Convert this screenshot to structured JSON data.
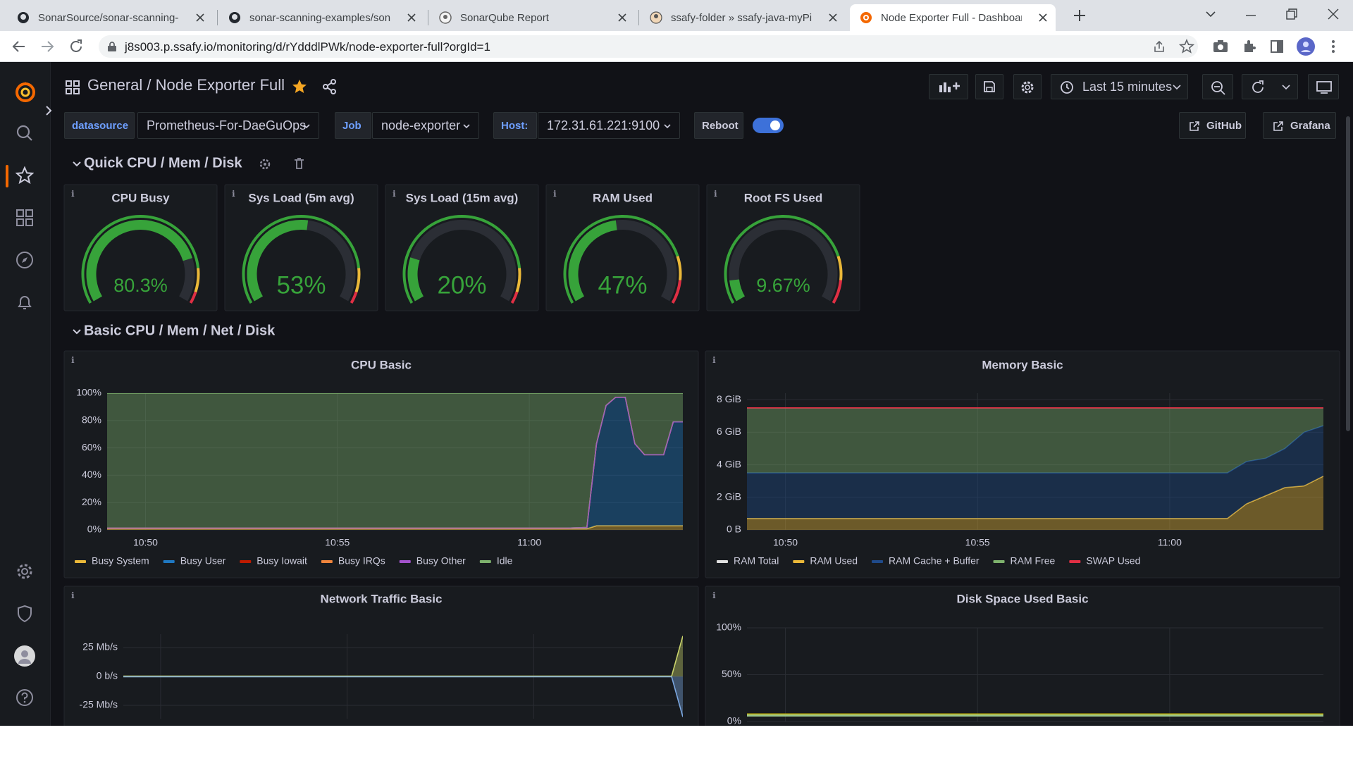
{
  "browser": {
    "tabs": [
      "SonarSource/sonar-scanning-ex",
      "sonar-scanning-examples/sonar",
      "SonarQube Report",
      "ssafy-folder » ssafy-java-myPipe",
      "Node Exporter Full - Dashboard"
    ],
    "url": "j8s003.p.ssafy.io/monitoring/d/rYdddlPWk/node-exporter-full?orgId=1"
  },
  "dashboard": {
    "folder": "General",
    "title": "/ Node Exporter Full",
    "time_range": "Last 15 minutes",
    "variables": [
      {
        "label": "datasource",
        "value": "Prometheus-For-DaeGuOps"
      },
      {
        "label": "Job",
        "value": "node-exporter"
      },
      {
        "label": "Host:",
        "value": "172.31.61.221:9100"
      }
    ],
    "toggle_label": "Reboot",
    "links": [
      "GitHub",
      "Grafana"
    ]
  },
  "rows": [
    {
      "title": "Quick CPU / Mem / Disk"
    },
    {
      "title": "Basic CPU / Mem / Net / Disk"
    }
  ],
  "chart_data": [
    {
      "type": "gauge",
      "title": "CPU Busy",
      "value": 80.3,
      "value_label": "80.3%",
      "range": [
        0,
        100
      ],
      "color": "#37a33a",
      "base_color": "#37a33a",
      "thresholds": [
        {
          "value": 85,
          "color": "#eab839"
        },
        {
          "value": 95,
          "color": "#e02f44"
        }
      ]
    },
    {
      "type": "gauge",
      "title": "Sys Load (5m avg)",
      "value": 53,
      "value_label": "53%",
      "range": [
        0,
        100
      ],
      "color": "#37a33a",
      "base_color": "#37a33a",
      "thresholds": [
        {
          "value": 85,
          "color": "#eab839"
        },
        {
          "value": 95,
          "color": "#e02f44"
        }
      ]
    },
    {
      "type": "gauge",
      "title": "Sys Load (15m avg)",
      "value": 20,
      "value_label": "20%",
      "range": [
        0,
        100
      ],
      "color": "#37a33a",
      "base_color": "#37a33a",
      "thresholds": [
        {
          "value": 85,
          "color": "#eab839"
        },
        {
          "value": 95,
          "color": "#e02f44"
        }
      ]
    },
    {
      "type": "gauge",
      "title": "RAM Used",
      "value": 47,
      "value_label": "47%",
      "range": [
        0,
        100
      ],
      "color": "#37a33a",
      "base_color": "#37a33a",
      "thresholds": [
        {
          "value": 80,
          "color": "#eab839"
        },
        {
          "value": 90,
          "color": "#e02f44"
        }
      ]
    },
    {
      "type": "gauge",
      "title": "Root FS Used",
      "value": 9.67,
      "value_label": "9.67%",
      "range": [
        0,
        100
      ],
      "color": "#37a33a",
      "base_color": "#37a33a",
      "thresholds": [
        {
          "value": 80,
          "color": "#eab839"
        },
        {
          "value": 90,
          "color": "#e02f44"
        }
      ]
    },
    {
      "type": "area",
      "title": "CPU Basic",
      "stacked": true,
      "x": [
        49,
        49.5,
        50,
        50.5,
        51,
        51.5,
        52,
        52.5,
        53,
        53.5,
        54,
        54.5,
        55,
        55.5,
        56,
        56.5,
        57,
        57.5,
        58,
        58.5,
        59,
        59.5,
        60,
        60.5,
        61,
        61.5,
        61.75,
        62,
        62.25,
        62.5,
        62.75,
        63,
        63.25,
        63.5,
        63.75,
        64
      ],
      "xlim": [
        49,
        64
      ],
      "xticks": [
        {
          "value": 50,
          "label": "10:50"
        },
        {
          "value": 55,
          "label": "10:55"
        },
        {
          "value": 60,
          "label": "11:00"
        }
      ],
      "ylim": [
        0,
        100
      ],
      "yticks": [
        {
          "value": 0,
          "label": "0%"
        },
        {
          "value": 20,
          "label": "20%"
        },
        {
          "value": 40,
          "label": "40%"
        },
        {
          "value": 60,
          "label": "60%"
        },
        {
          "value": 80,
          "label": "80%"
        },
        {
          "value": 100,
          "label": "100%"
        }
      ],
      "series": [
        {
          "name": "Busy System",
          "color": "#eab839",
          "values": [
            0.8,
            0.8,
            0.8,
            0.8,
            0.8,
            0.8,
            0.8,
            0.8,
            0.8,
            0.8,
            0.8,
            0.8,
            0.8,
            0.8,
            0.8,
            0.8,
            0.8,
            0.8,
            0.8,
            0.8,
            0.8,
            0.8,
            0.8,
            0.8,
            0.8,
            0.8,
            3,
            3,
            3,
            3,
            3,
            3,
            3,
            3,
            3,
            3
          ]
        },
        {
          "name": "Busy User",
          "color": "#1f78c1",
          "values": [
            0.5,
            0.5,
            0.5,
            0.5,
            0.5,
            0.5,
            0.5,
            0.5,
            0.5,
            0.5,
            0.5,
            0.5,
            0.5,
            0.5,
            0.5,
            0.5,
            0.5,
            0.5,
            0.5,
            0.5,
            0.5,
            0.5,
            0.5,
            0.5,
            0.5,
            1,
            60,
            88,
            94,
            94,
            60,
            52,
            52,
            52,
            76,
            76
          ]
        },
        {
          "name": "Busy Iowait",
          "color": "#bf1b00",
          "values": [
            0,
            0,
            0,
            0,
            0,
            0,
            0,
            0,
            0,
            0,
            0,
            0,
            0,
            0,
            0,
            0,
            0,
            0,
            0,
            0,
            0,
            0,
            0,
            0,
            0,
            0,
            0,
            0,
            0,
            0,
            0,
            0,
            0,
            0,
            0,
            0
          ]
        },
        {
          "name": "Busy IRQs",
          "color": "#ef843c",
          "values": [
            0,
            0,
            0,
            0,
            0,
            0,
            0,
            0,
            0,
            0,
            0,
            0,
            0,
            0,
            0,
            0,
            0,
            0,
            0,
            0,
            0,
            0,
            0,
            0,
            0,
            0,
            0,
            0,
            0,
            0,
            0,
            0,
            0,
            0,
            0,
            0
          ]
        },
        {
          "name": "Busy Other",
          "color": "#a352cc",
          "values": [
            0,
            0,
            0,
            0,
            0,
            0,
            0,
            0,
            0,
            0,
            0,
            0,
            0,
            0,
            0,
            0,
            0,
            0,
            0,
            0,
            0,
            0,
            0,
            0,
            0,
            0,
            0,
            0,
            0,
            0,
            0,
            0,
            0,
            0,
            0,
            0
          ]
        },
        {
          "name": "Idle",
          "color": "#7eb26d",
          "values": [
            98.7,
            98.7,
            98.7,
            98.7,
            98.7,
            98.7,
            98.7,
            98.7,
            98.7,
            98.7,
            98.7,
            98.7,
            98.7,
            98.7,
            98.7,
            98.7,
            98.7,
            98.7,
            98.7,
            98.7,
            98.7,
            98.7,
            98.7,
            98.7,
            98.7,
            98.2,
            37,
            9,
            3,
            3,
            37,
            45,
            45,
            45,
            21,
            21
          ]
        }
      ]
    },
    {
      "type": "area",
      "title": "Memory Basic",
      "stacked": true,
      "x": [
        49,
        49.5,
        50,
        50.5,
        51,
        51.5,
        52,
        52.5,
        53,
        53.5,
        54,
        54.5,
        55,
        55.5,
        56,
        56.5,
        57,
        57.5,
        58,
        58.5,
        59,
        59.5,
        60,
        60.5,
        61,
        61.5,
        62,
        62.5,
        63,
        63.5,
        64
      ],
      "xlim": [
        49,
        64
      ],
      "xticks": [
        {
          "value": 50,
          "label": "10:50"
        },
        {
          "value": 55,
          "label": "10:55"
        },
        {
          "value": 60,
          "label": "11:00"
        }
      ],
      "ylim": [
        0,
        8.4
      ],
      "yticks": [
        {
          "value": 0,
          "label": "0 B"
        },
        {
          "value": 2,
          "label": "2 GiB"
        },
        {
          "value": 4,
          "label": "4 GiB"
        },
        {
          "value": 6,
          "label": "6 GiB"
        },
        {
          "value": 8,
          "label": "8 GiB"
        }
      ],
      "series": [
        {
          "name": "RAM Total",
          "color": "#e0e0e0",
          "stack": false,
          "values": [
            7.5,
            7.5,
            7.5,
            7.5,
            7.5,
            7.5,
            7.5,
            7.5,
            7.5,
            7.5,
            7.5,
            7.5,
            7.5,
            7.5,
            7.5,
            7.5,
            7.5,
            7.5,
            7.5,
            7.5,
            7.5,
            7.5,
            7.5,
            7.5,
            7.5,
            7.5,
            7.5,
            7.5,
            7.5,
            7.5,
            7.5
          ]
        },
        {
          "name": "RAM Used",
          "color": "#eab839",
          "values": [
            0.7,
            0.7,
            0.7,
            0.7,
            0.7,
            0.7,
            0.7,
            0.7,
            0.7,
            0.7,
            0.7,
            0.7,
            0.7,
            0.7,
            0.7,
            0.7,
            0.7,
            0.7,
            0.7,
            0.7,
            0.7,
            0.7,
            0.7,
            0.7,
            0.7,
            0.7,
            1.6,
            2.1,
            2.6,
            2.7,
            3.3
          ]
        },
        {
          "name": "RAM Cache + Buffer",
          "color": "#1f4a8a",
          "values": [
            2.8,
            2.8,
            2.8,
            2.8,
            2.8,
            2.8,
            2.8,
            2.8,
            2.8,
            2.8,
            2.8,
            2.8,
            2.8,
            2.8,
            2.8,
            2.8,
            2.8,
            2.8,
            2.8,
            2.8,
            2.8,
            2.8,
            2.8,
            2.8,
            2.8,
            2.8,
            2.6,
            2.3,
            2.4,
            3.3,
            3.1
          ]
        },
        {
          "name": "RAM Free",
          "color": "#7eb26d",
          "values": [
            4.0,
            4.0,
            4.0,
            4.0,
            4.0,
            4.0,
            4.0,
            4.0,
            4.0,
            4.0,
            4.0,
            4.0,
            4.0,
            4.0,
            4.0,
            4.0,
            4.0,
            4.0,
            4.0,
            4.0,
            4.0,
            4.0,
            4.0,
            4.0,
            4.0,
            4.0,
            3.3,
            3.1,
            2.5,
            1.5,
            1.1
          ]
        },
        {
          "name": "SWAP Used",
          "color": "#e02f44",
          "values": [
            0,
            0,
            0,
            0,
            0,
            0,
            0,
            0,
            0,
            0,
            0,
            0,
            0,
            0,
            0,
            0,
            0,
            0,
            0,
            0,
            0,
            0,
            0,
            0,
            0,
            0,
            0,
            0,
            0,
            0,
            0
          ]
        }
      ]
    },
    {
      "type": "area",
      "title": "Network Traffic Basic",
      "stacked": false,
      "x": [
        49,
        50,
        51,
        52,
        53,
        54,
        55,
        56,
        57,
        58,
        59,
        60,
        61,
        62,
        63,
        63.7,
        64
      ],
      "xlim": [
        49,
        64
      ],
      "xticks": [
        {
          "value": 50,
          "label": ""
        },
        {
          "value": 55,
          "label": ""
        },
        {
          "value": 60,
          "label": ""
        }
      ],
      "ylim": [
        -36.6,
        36.6
      ],
      "yticks": [
        {
          "value": -25,
          "label": "-25 Mb/s"
        },
        {
          "value": 0,
          "label": "0 b/s"
        },
        {
          "value": 25,
          "label": "25 Mb/s"
        }
      ],
      "series": [
        {
          "color": "#c9d36b",
          "values": [
            0.3,
            0.3,
            0.3,
            0.3,
            0.3,
            0.3,
            0.3,
            0.3,
            0.3,
            0.3,
            0.3,
            0.3,
            0.3,
            0.3,
            0.3,
            0.3,
            35
          ]
        },
        {
          "color": "#7ba7e0",
          "values": [
            -0.3,
            -0.3,
            -0.3,
            -0.3,
            -0.3,
            -0.3,
            -0.3,
            -0.3,
            -0.3,
            -0.3,
            -0.3,
            -0.3,
            -0.3,
            -0.3,
            -0.3,
            -0.3,
            -35
          ]
        }
      ]
    },
    {
      "type": "line",
      "title": "Disk Space Used Basic",
      "x": [
        49,
        64
      ],
      "xlim": [
        49,
        64
      ],
      "xticks": [
        {
          "value": 50,
          "label": ""
        },
        {
          "value": 55,
          "label": ""
        },
        {
          "value": 60,
          "label": ""
        }
      ],
      "ylim": [
        0,
        100
      ],
      "yticks": [
        {
          "value": 0,
          "label": "0%"
        },
        {
          "value": 50,
          "label": "50%"
        },
        {
          "value": 100,
          "label": "100%"
        }
      ],
      "series": [
        {
          "color": "#c8b400",
          "values": [
            7.5,
            7.5
          ]
        },
        {
          "color": "#9ac48a",
          "values": [
            6.5,
            6.5
          ]
        }
      ]
    }
  ]
}
